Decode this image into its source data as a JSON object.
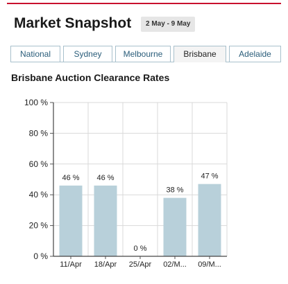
{
  "header": {
    "title": "Market Snapshot",
    "date_range": "2 May - 9 May"
  },
  "tabs": [
    {
      "label": "National",
      "active": false
    },
    {
      "label": "Sydney",
      "active": false
    },
    {
      "label": "Melbourne",
      "active": false
    },
    {
      "label": "Brisbane",
      "active": true
    },
    {
      "label": "Adelaide",
      "active": false
    }
  ],
  "colors": {
    "accent_line": "#c8102e",
    "tab_text": "#2a5d7a",
    "bar_fill": "#b8d0da",
    "grid": "#d9d9d9"
  },
  "chart_data": {
    "type": "bar",
    "title": "Brisbane Auction Clearance Rates",
    "categories": [
      "11/Apr",
      "18/Apr",
      "25/Apr",
      "02/M...",
      "09/M..."
    ],
    "values": [
      46,
      46,
      0,
      38,
      47
    ],
    "data_labels": [
      "46 %",
      "46 %",
      "0 %",
      "38 %",
      "47 %"
    ],
    "ylim": [
      0,
      100
    ],
    "yticks": [
      0,
      20,
      40,
      60,
      80,
      100
    ],
    "ytick_labels": [
      "0 %",
      "20 %",
      "40 %",
      "60 %",
      "80 %",
      "100 %"
    ],
    "grid": true,
    "xlabel": "",
    "ylabel": ""
  }
}
